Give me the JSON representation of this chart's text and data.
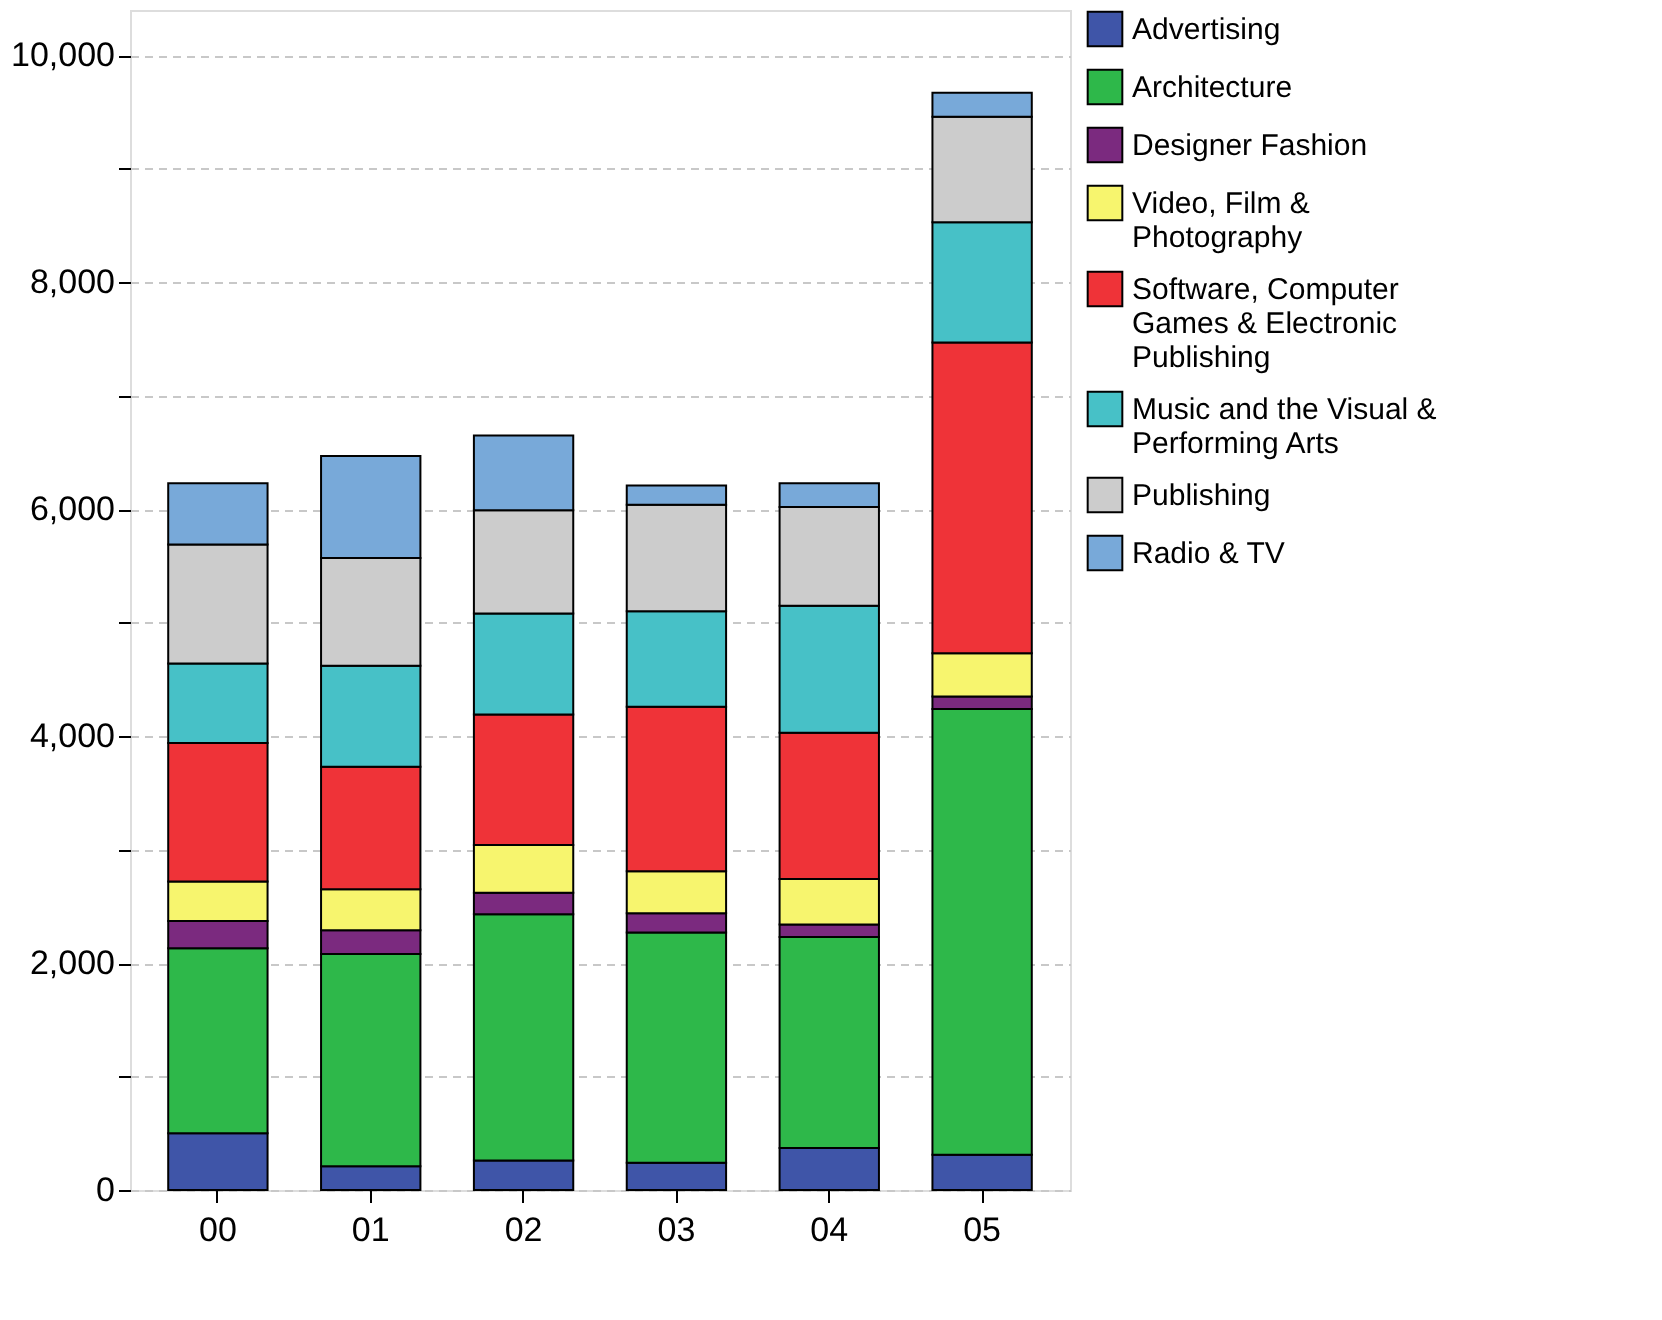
{
  "chart_data": {
    "type": "bar",
    "stacked": true,
    "categories": [
      "00",
      "01",
      "02",
      "03",
      "04",
      "05"
    ],
    "series": [
      {
        "name": "Advertising",
        "color": "#3f55a8",
        "values": [
          500,
          210,
          260,
          240,
          370,
          310
        ]
      },
      {
        "name": "Architecture",
        "color": "#2eb84a",
        "values": [
          1630,
          1870,
          2170,
          2030,
          1860,
          3930
        ]
      },
      {
        "name": "Designer Fashion",
        "color": "#7b2a7f",
        "values": [
          240,
          210,
          190,
          170,
          110,
          110
        ]
      },
      {
        "name": "Video, Film & Photography",
        "color": "#f7f56e",
        "values": [
          350,
          360,
          420,
          370,
          400,
          380
        ]
      },
      {
        "name": "Software, Computer Games & Electronic Publishing",
        "color": "#ef3338",
        "values": [
          1220,
          1080,
          1150,
          1450,
          1290,
          2740
        ]
      },
      {
        "name": "Music and the Visual & Performing Arts",
        "color": "#47c1c7",
        "values": [
          700,
          890,
          890,
          840,
          1120,
          1060
        ]
      },
      {
        "name": "Publishing",
        "color": "#cccccc",
        "values": [
          1050,
          950,
          910,
          940,
          870,
          930
        ]
      },
      {
        "name": "Radio & TV",
        "color": "#78a9d9",
        "values": [
          540,
          900,
          660,
          170,
          210,
          210
        ]
      }
    ],
    "ylim": [
      0,
      10400
    ],
    "yticks": [
      0,
      {
        "value": 1000,
        "label": null
      },
      {
        "value": 2000,
        "label": "2,000"
      },
      {
        "value": 3000,
        "label": null
      },
      {
        "value": 4000,
        "label": "4,000"
      },
      {
        "value": 5000,
        "label": null
      },
      {
        "value": 6000,
        "label": "6,000"
      },
      {
        "value": 7000,
        "label": null
      },
      {
        "value": 8000,
        "label": "8,000"
      },
      {
        "value": 9000,
        "label": null
      },
      {
        "value": 10000,
        "label": "10,000"
      }
    ],
    "grid": "y",
    "legend": "top right"
  }
}
